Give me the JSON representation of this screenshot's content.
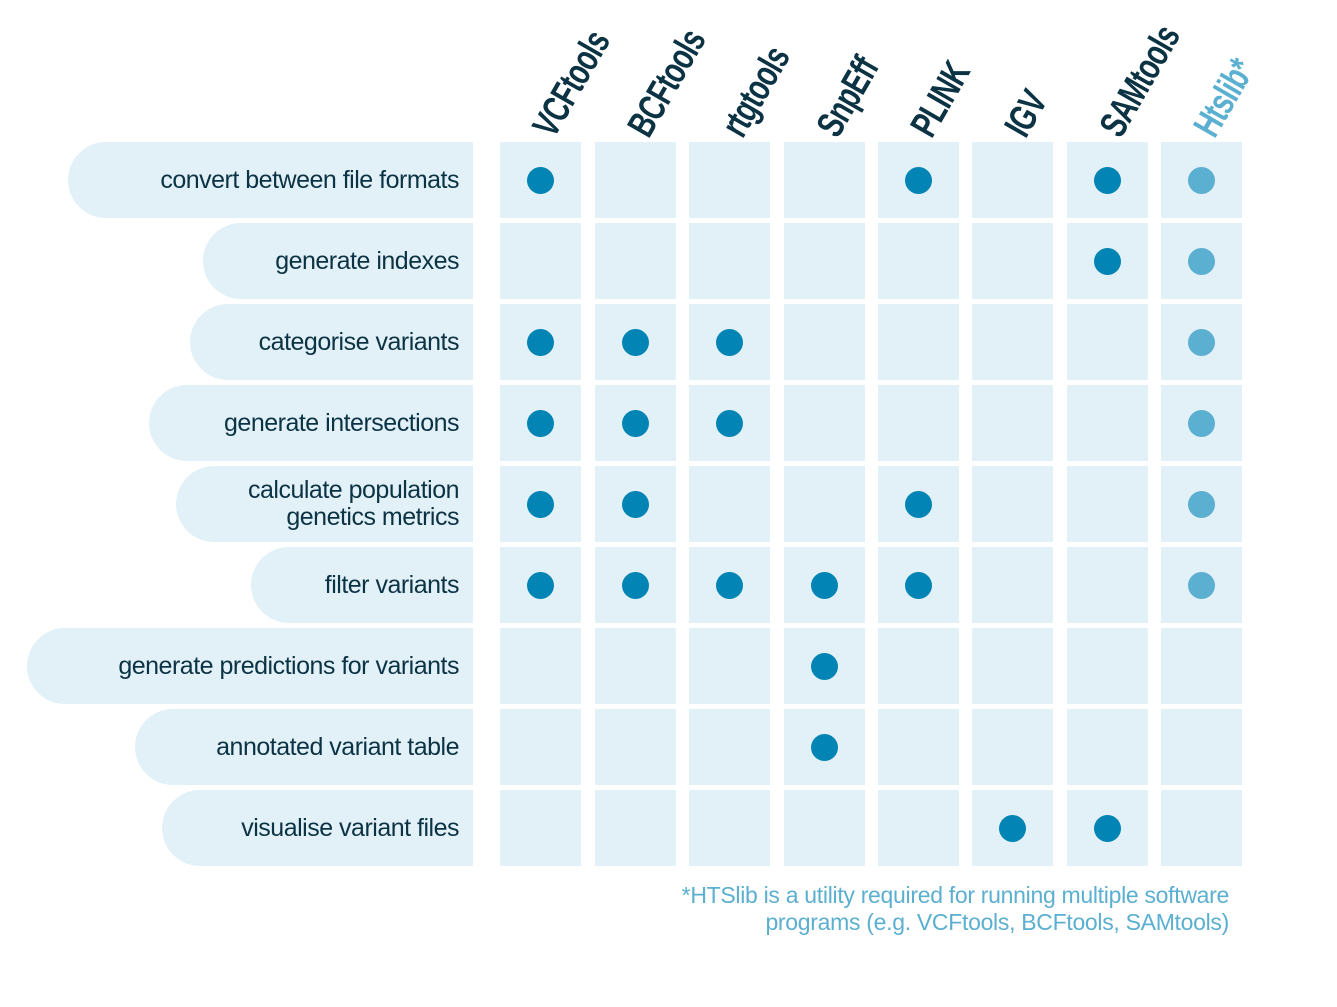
{
  "colors": {
    "header_text": "#0b3344",
    "highlight_header_text": "#5bafd0",
    "cell_bg": "#e2f0f8",
    "dot": "#0284b4",
    "highlight_dot": "#5bafd0",
    "row_text": "#0b3344",
    "footnote_text": "#5bafd0"
  },
  "tools": [
    {
      "name": "VCFtools",
      "highlight": false
    },
    {
      "name": "BCFtools",
      "highlight": false
    },
    {
      "name": "rtgtools",
      "highlight": false
    },
    {
      "name": "SnpEff",
      "highlight": false
    },
    {
      "name": "PLINK",
      "highlight": false
    },
    {
      "name": "IGV",
      "highlight": false
    },
    {
      "name": "SAMtools",
      "highlight": false
    },
    {
      "name": "Htslib*",
      "highlight": true
    }
  ],
  "tasks": [
    {
      "label": "convert between  file formats",
      "marks": [
        true,
        false,
        false,
        false,
        true,
        false,
        true,
        true
      ]
    },
    {
      "label": "generate indexes",
      "marks": [
        false,
        false,
        false,
        false,
        false,
        false,
        true,
        true
      ]
    },
    {
      "label": "categorise variants",
      "marks": [
        true,
        true,
        true,
        false,
        false,
        false,
        false,
        true
      ]
    },
    {
      "label": "generate intersections",
      "marks": [
        true,
        true,
        true,
        false,
        false,
        false,
        false,
        true
      ]
    },
    {
      "label": "calculate population\ngenetics metrics",
      "marks": [
        true,
        true,
        false,
        false,
        true,
        false,
        false,
        true
      ]
    },
    {
      "label": "filter variants",
      "marks": [
        true,
        true,
        true,
        true,
        true,
        false,
        false,
        true
      ]
    },
    {
      "label": "generate predictions for variants",
      "marks": [
        false,
        false,
        false,
        true,
        false,
        false,
        false,
        false
      ]
    },
    {
      "label": "annotated variant table",
      "marks": [
        false,
        false,
        false,
        true,
        false,
        false,
        false,
        false
      ]
    },
    {
      "label": "visualise variant files",
      "marks": [
        false,
        false,
        false,
        false,
        false,
        true,
        true,
        false
      ]
    }
  ],
  "footnote": {
    "line1": "*HTSlib is a utility required for running multiple software",
    "line2": "programs (e.g. VCFtools, BCFtools, SAMtools)"
  }
}
